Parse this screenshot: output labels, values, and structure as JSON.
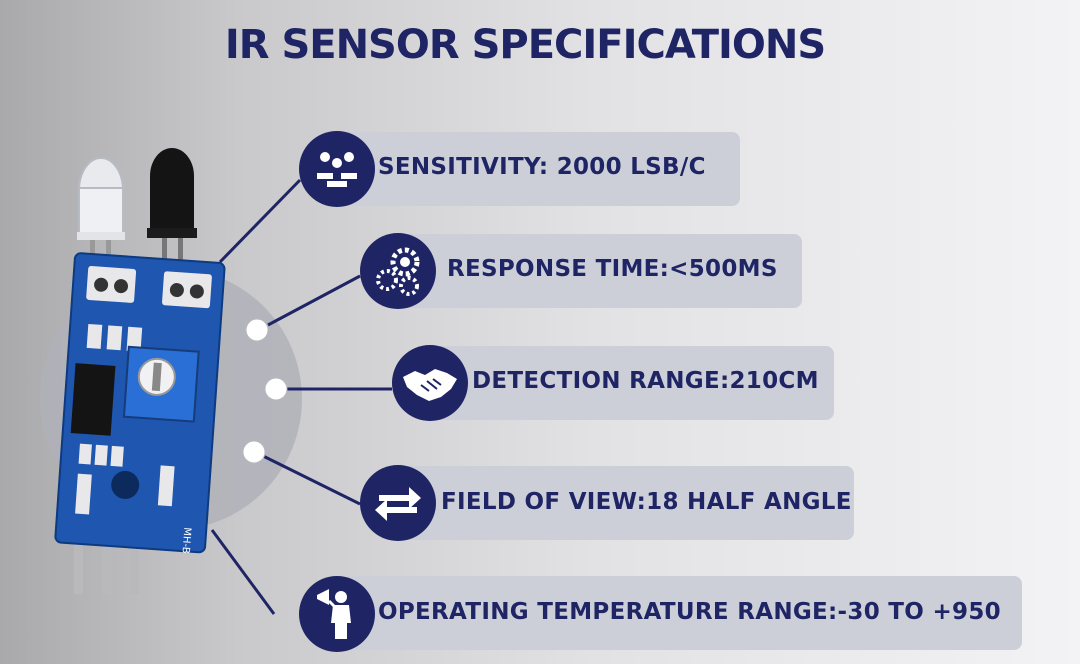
{
  "title": "IR SENSOR SPECIFICATIONS",
  "colors": {
    "navy": "#1f2564",
    "pill": "#cdcfd8",
    "board": "#1e56b0"
  },
  "specs": [
    {
      "label": "SENSITIVITY: 2000 LSB/C",
      "icon": "people-desks-icon"
    },
    {
      "label": "RESPONSE TIME:<500MS",
      "icon": "gears-icon"
    },
    {
      "label": "DETECTION RANGE:210CM",
      "icon": "handshake-icon"
    },
    {
      "label": "FIELD OF VIEW:18 HALF ANGLE",
      "icon": "arrows-exchange-icon"
    },
    {
      "label": "OPERATING TEMPERATURE RANGE:-30 TO +950",
      "icon": "speaker-person-icon"
    }
  ],
  "board_text": {
    "model": "MH-B"
  }
}
